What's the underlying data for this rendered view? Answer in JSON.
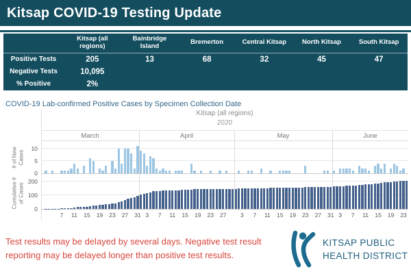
{
  "header": {
    "title": "Kitsap COVID-19 Testing Update"
  },
  "summary_table": {
    "columns": [
      "Kitsap (all regions)",
      "Bainbridge Island",
      "Bremerton",
      "Central Kitsap",
      "North Kitsap",
      "South Kitsap"
    ],
    "rows": [
      {
        "label": "Positive Tests",
        "values": [
          "205",
          "13",
          "68",
          "32",
          "45",
          "47"
        ]
      },
      {
        "label": "Negative Tests",
        "values": [
          "10,095",
          "",
          "",
          "",
          "",
          ""
        ]
      },
      {
        "label": "% Positive",
        "values": [
          "2%",
          "",
          "",
          "",
          "",
          ""
        ]
      }
    ]
  },
  "chart": {
    "title": "COVID-19 Lab-confirmed Positive Cases by Specimen Collection Date",
    "region_label": "Kitsap (all regions)",
    "year": "2020",
    "top_axis_label": "# of New Cases",
    "bottom_axis_label": "Cumulative # of Cases"
  },
  "chart_data": {
    "type": "bar",
    "title": "COVID-19 Lab-confirmed Positive Cases by Specimen Collection Date",
    "subtitle": "Kitsap (all regions)",
    "year": "2020",
    "x_unit": "specimen collection date (daily)",
    "panels": [
      {
        "name": "# of New Cases",
        "ylim": [
          0,
          13
        ],
        "ticks": [
          0,
          5,
          10
        ]
      },
      {
        "name": "Cumulative # of Cases",
        "ylim": [
          0,
          235
        ],
        "ticks": [
          0,
          100,
          200
        ],
        "derived": "running sum of daily new cases"
      }
    ],
    "months": [
      {
        "name": "March",
        "days": 31,
        "tick_days": [
          7,
          11,
          15,
          19,
          23,
          27,
          31
        ],
        "new_cases": [
          0,
          1,
          0,
          1,
          0,
          0,
          1,
          1,
          1,
          2,
          4,
          2,
          0,
          3,
          0,
          6,
          5,
          0,
          2,
          1,
          3,
          0,
          5,
          2,
          10,
          4,
          10,
          10,
          8,
          2,
          11
        ]
      },
      {
        "name": "April",
        "days": 30,
        "tick_days": [
          3,
          7,
          11,
          15,
          19,
          23,
          27
        ],
        "new_cases": [
          9,
          8,
          3,
          7,
          6,
          2,
          1,
          2,
          1,
          1,
          0,
          1,
          1,
          1,
          0,
          0,
          4,
          1,
          0,
          1,
          0,
          0,
          1,
          0,
          0,
          1,
          0,
          1,
          0,
          0
        ]
      },
      {
        "name": "May",
        "days": 31,
        "tick_days": [
          3,
          7,
          11,
          15,
          19,
          23,
          27,
          31
        ],
        "new_cases": [
          0,
          1,
          0,
          0,
          1,
          1,
          0,
          0,
          2,
          0,
          0,
          1,
          0,
          0,
          1,
          1,
          1,
          1,
          0,
          0,
          0,
          0,
          3,
          0,
          0,
          0,
          0,
          0,
          1,
          1,
          0
        ]
      },
      {
        "name": "June",
        "days": 24,
        "tick_days": [
          3,
          7,
          11,
          15,
          19,
          23
        ],
        "new_cases": [
          1,
          0,
          2,
          2,
          2,
          2,
          1,
          0,
          3,
          2,
          2,
          1,
          0,
          3,
          4,
          2,
          4,
          0,
          2,
          4,
          3,
          1,
          2,
          0
        ]
      }
    ],
    "total_cases": 205,
    "grid": true,
    "legend": false,
    "colors": {
      "new_cases_bar": "#9CC6E3",
      "cumulative_bar": "#44618C"
    }
  },
  "footer": {
    "note": "Test results may be delayed by several days. Negative test result reporting may be delayed longer than positive test results.",
    "logo_line1": "KITSAP PUBLIC",
    "logo_line2": "HEALTH DISTRICT"
  },
  "colors": {
    "header_teal": "#134D5E",
    "chart_title": "#35688A",
    "note_red": "#D8473D",
    "logo_teal": "#1C6C8F"
  }
}
